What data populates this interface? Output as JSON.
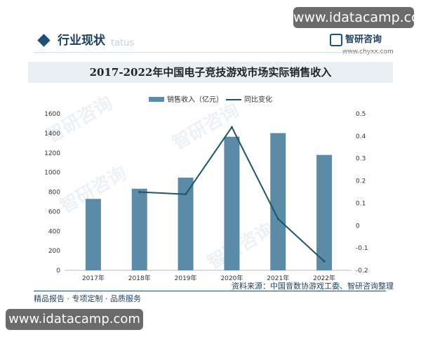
{
  "watermark": "www.idatacamp.com",
  "header": {
    "section_title": "行业现状",
    "section_subtitle": "tatus",
    "brand_name": "智研咨询",
    "brand_url": "www.chyxx.com"
  },
  "background_mark": "智研咨询",
  "footer": {
    "left_text": "精品报告 · 专项定制 · 品质服务",
    "source_text": "资料来源：中国音数协游戏工委、智研咨询整理"
  },
  "chart_data": {
    "type": "bar",
    "title": "2017-2022年中国电子竞技游戏市场实际销售收入",
    "categories": [
      "2017年",
      "2018年",
      "2019年",
      "2020年",
      "2021年",
      "2022年"
    ],
    "series": [
      {
        "name": "销售收入（亿元）",
        "type": "bar",
        "axis": "left",
        "values": [
          730,
          834,
          947,
          1365,
          1402,
          1179
        ]
      },
      {
        "name": "同比变化",
        "type": "line",
        "axis": "right",
        "values": [
          null,
          0.15,
          0.14,
          0.44,
          0.03,
          -0.16
        ]
      }
    ],
    "left_ticks": [
      "0",
      "200",
      "400",
      "600",
      "800",
      "1000",
      "1200",
      "1400",
      "1600"
    ],
    "right_ticks": [
      "0.5",
      "0.4",
      "0.3",
      "0.2",
      "0.1",
      "0",
      "-0.1",
      "-0.2"
    ],
    "ylim_left": [
      0,
      1600
    ],
    "ylim_right": [
      -0.2,
      0.5
    ],
    "legend_position": "top-center",
    "grid": false,
    "colors": {
      "bar": "#5b8ba6",
      "line": "#1c5668"
    }
  }
}
